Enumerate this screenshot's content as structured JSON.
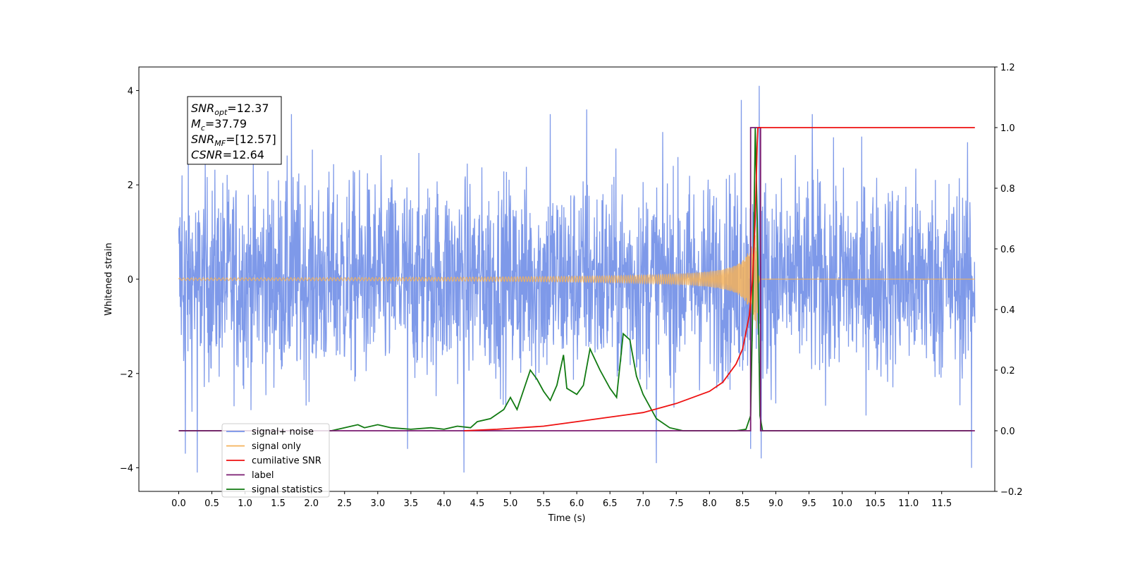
{
  "chart_data": {
    "type": "line",
    "xlabel": "Time (s)",
    "ylabel_left": "Whitened strain",
    "ylabel_right": "",
    "xlim": [
      -0.6,
      12.3
    ],
    "ylim_left": [
      -4.5,
      4.5
    ],
    "ylim_right": [
      -0.2,
      1.2
    ],
    "x_ticks": [
      0.0,
      0.5,
      1.0,
      1.5,
      2.0,
      2.5,
      3.0,
      3.5,
      4.0,
      4.5,
      5.0,
      5.5,
      6.0,
      6.5,
      7.0,
      7.5,
      8.0,
      8.5,
      9.0,
      9.5,
      10.0,
      10.5,
      11.0,
      11.5
    ],
    "x_tick_labels": [
      "0.0",
      "0.5",
      "1.0",
      "1.5",
      "2.0",
      "2.5",
      "3.0",
      "3.5",
      "4.0",
      "4.5",
      "5.0",
      "5.5",
      "6.0",
      "6.5",
      "7.0",
      "7.5",
      "8.0",
      "8.5",
      "9.0",
      "9.5",
      "10.0",
      "10.5",
      "11.0",
      "11.5"
    ],
    "y_ticks_left": [
      -4,
      -2,
      0,
      2,
      4
    ],
    "y_tick_labels_left": [
      "−4",
      "−2",
      "0",
      "2",
      "4"
    ],
    "y_ticks_right": [
      -0.2,
      0.0,
      0.2,
      0.4,
      0.6,
      0.8,
      1.0,
      1.2
    ],
    "y_tick_labels_right": [
      "−0.2",
      "0.0",
      "0.2",
      "0.4",
      "0.6",
      "0.8",
      "1.0",
      "1.2"
    ],
    "grid": false,
    "legend_position": "lower-left",
    "annotation": {
      "lines": [
        {
          "main": "SNR",
          "sub": "opt",
          "value": "=12.37"
        },
        {
          "main": "M",
          "sub": "c",
          "value": "=37.79"
        },
        {
          "main": "SNR",
          "sub": "MF",
          "value": "=[12.57]"
        },
        {
          "main": "CSNR",
          "sub": "",
          "value": "=12.64"
        }
      ]
    },
    "series": [
      {
        "name": "signal+ noise",
        "color": "#7793e8",
        "axis": "left",
        "kind": "noise",
        "x_range": [
          0.0,
          12.0
        ],
        "typical_envelope": 2.6,
        "spikes": [
          {
            "x": 0.05,
            "y": 2.2
          },
          {
            "x": 0.1,
            "y": -3.7
          },
          {
            "x": 0.28,
            "y": -4.1
          },
          {
            "x": 1.7,
            "y": 3.5
          },
          {
            "x": 3.45,
            "y": -3.6
          },
          {
            "x": 4.3,
            "y": -4.1
          },
          {
            "x": 5.6,
            "y": 3.5
          },
          {
            "x": 6.15,
            "y": 3.6
          },
          {
            "x": 7.2,
            "y": -3.9
          },
          {
            "x": 8.48,
            "y": 3.8
          },
          {
            "x": 8.62,
            "y": -3.6
          },
          {
            "x": 8.75,
            "y": 4.1
          },
          {
            "x": 8.78,
            "y": -3.8
          },
          {
            "x": 9.55,
            "y": 3.5
          },
          {
            "x": 11.95,
            "y": -4.0
          }
        ]
      },
      {
        "name": "signal only",
        "color": "#f5b25a",
        "axis": "left",
        "kind": "chirp",
        "x_range": [
          0.0,
          12.0
        ],
        "merger_time": 8.72,
        "peak_amplitude": 1.2
      },
      {
        "name": "cumilative SNR",
        "color": "#ee1111",
        "axis": "right",
        "points": [
          [
            4.3,
            0.0
          ],
          [
            4.8,
            0.005
          ],
          [
            5.5,
            0.015
          ],
          [
            6.0,
            0.03
          ],
          [
            6.5,
            0.045
          ],
          [
            7.0,
            0.06
          ],
          [
            7.5,
            0.09
          ],
          [
            8.0,
            0.13
          ],
          [
            8.2,
            0.16
          ],
          [
            8.4,
            0.22
          ],
          [
            8.5,
            0.27
          ],
          [
            8.6,
            0.38
          ],
          [
            8.65,
            0.5
          ],
          [
            8.69,
            0.7
          ],
          [
            8.72,
            0.95
          ],
          [
            8.73,
            1.0
          ],
          [
            12.0,
            1.0
          ]
        ]
      },
      {
        "name": "label",
        "color": "#7a1a70",
        "axis": "right",
        "points": [
          [
            0.0,
            0.0
          ],
          [
            8.62,
            0.0
          ],
          [
            8.62,
            1.0
          ],
          [
            8.77,
            1.0
          ],
          [
            8.77,
            0.0
          ],
          [
            12.0,
            0.0
          ]
        ]
      },
      {
        "name": "signal statistics",
        "color": "#117a11",
        "axis": "right",
        "points": [
          [
            0.0,
            0.0
          ],
          [
            2.3,
            0.0
          ],
          [
            2.5,
            0.01
          ],
          [
            2.7,
            0.02
          ],
          [
            2.8,
            0.01
          ],
          [
            3.0,
            0.02
          ],
          [
            3.2,
            0.01
          ],
          [
            3.5,
            0.005
          ],
          [
            3.8,
            0.01
          ],
          [
            4.0,
            0.005
          ],
          [
            4.2,
            0.015
          ],
          [
            4.4,
            0.01
          ],
          [
            4.5,
            0.03
          ],
          [
            4.7,
            0.04
          ],
          [
            4.9,
            0.07
          ],
          [
            5.0,
            0.11
          ],
          [
            5.1,
            0.07
          ],
          [
            5.3,
            0.2
          ],
          [
            5.4,
            0.17
          ],
          [
            5.5,
            0.13
          ],
          [
            5.6,
            0.1
          ],
          [
            5.7,
            0.15
          ],
          [
            5.8,
            0.25
          ],
          [
            5.85,
            0.14
          ],
          [
            6.0,
            0.12
          ],
          [
            6.1,
            0.15
          ],
          [
            6.2,
            0.27
          ],
          [
            6.35,
            0.2
          ],
          [
            6.5,
            0.14
          ],
          [
            6.6,
            0.11
          ],
          [
            6.7,
            0.32
          ],
          [
            6.8,
            0.3
          ],
          [
            6.9,
            0.18
          ],
          [
            7.0,
            0.12
          ],
          [
            7.2,
            0.04
          ],
          [
            7.4,
            0.01
          ],
          [
            7.6,
            0.0
          ],
          [
            8.4,
            0.0
          ],
          [
            8.55,
            0.005
          ],
          [
            8.62,
            0.05
          ],
          [
            8.66,
            0.5
          ],
          [
            8.69,
            1.0
          ],
          [
            8.72,
            0.7
          ],
          [
            8.76,
            0.05
          ],
          [
            8.8,
            0.0
          ],
          [
            11.95,
            0.0
          ]
        ]
      }
    ]
  }
}
